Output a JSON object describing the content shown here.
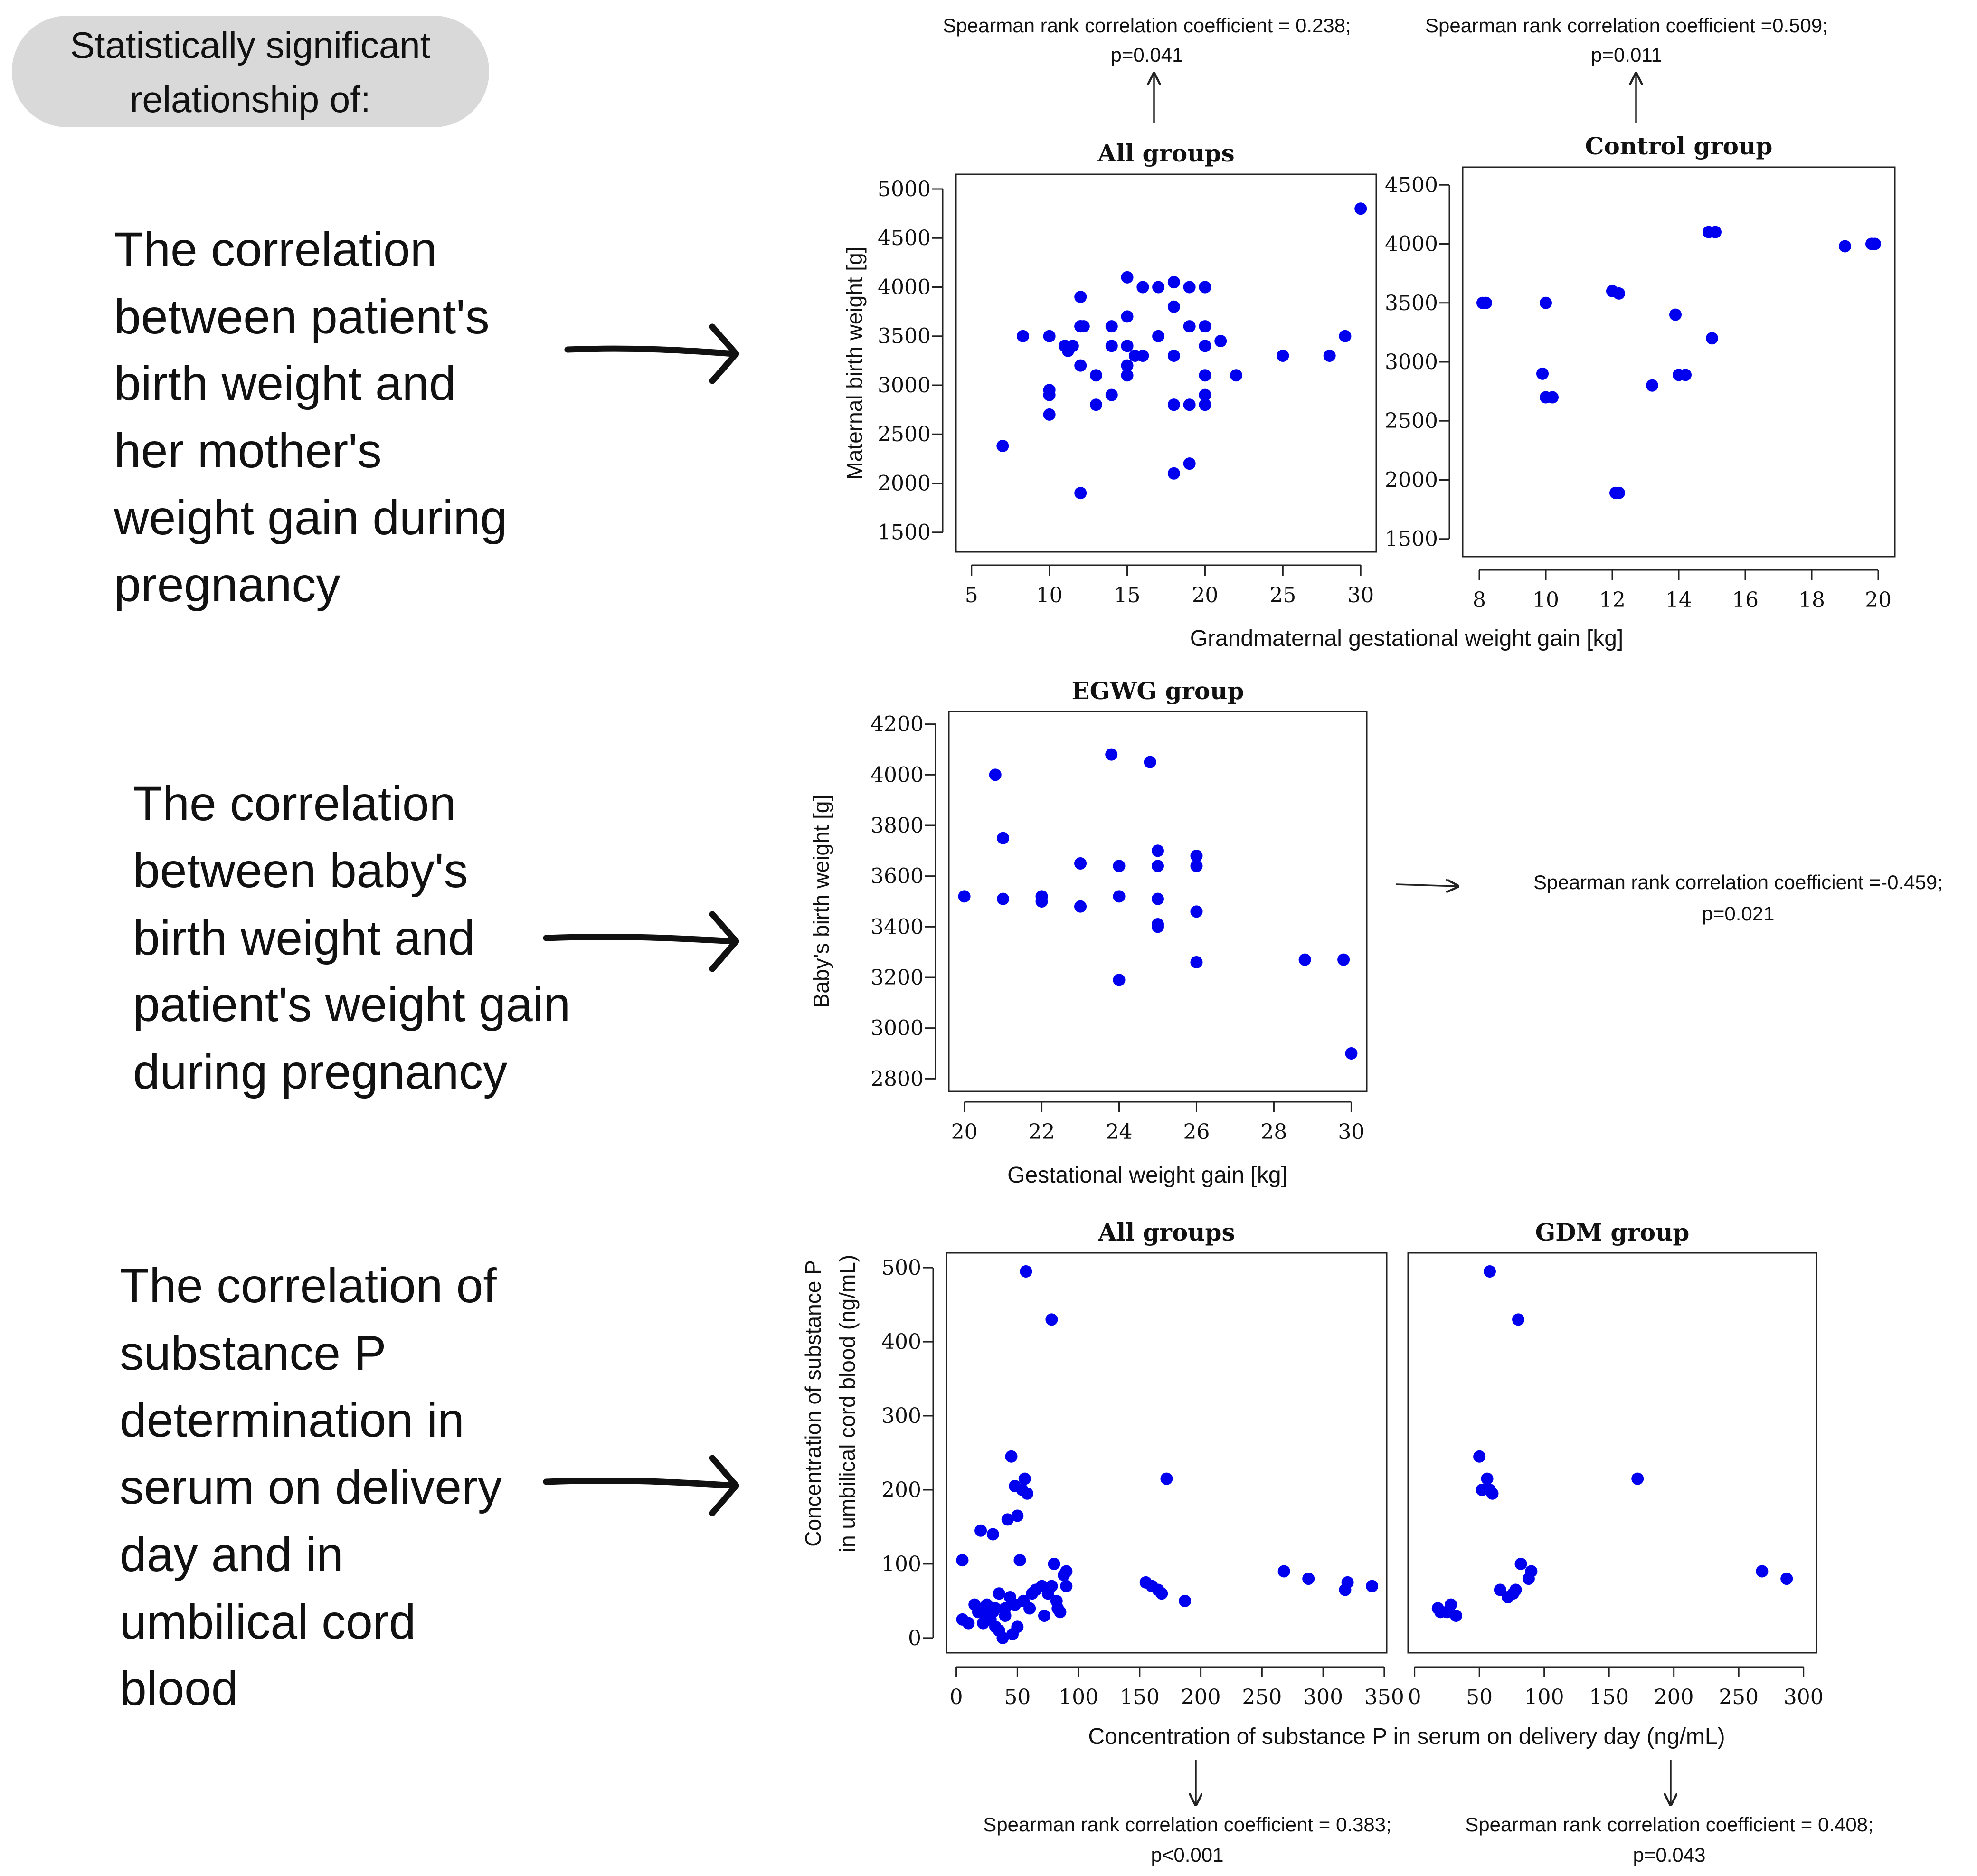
{
  "header": {
    "label": "Statistically significant relationship of:",
    "lines": [
      "Statistically significant",
      "relationship of:"
    ]
  },
  "colors": {
    "point": "#0000EE",
    "text": "#111111",
    "badge_bg": "#d9d9d9"
  },
  "rows": [
    {
      "id": "row1",
      "lines": [
        "The correlation",
        "between patient's",
        "birth weight and",
        "her mother's",
        "weight gain during",
        "pregnancy"
      ]
    },
    {
      "id": "row2",
      "lines": [
        "The correlation",
        "between baby's",
        "birth weight and",
        "patient's weight gain",
        "during pregnancy"
      ]
    },
    {
      "id": "row3",
      "lines": [
        "The correlation of",
        "substance P",
        "determination in",
        "serum on delivery",
        "day and in",
        "umbilical cord",
        "blood"
      ]
    }
  ],
  "annotations": {
    "a1": {
      "line1": "Spearman rank correlation coefficient = 0.238;",
      "line2": "p=0.041"
    },
    "a2": {
      "line1": "Spearman rank correlation coefficient =0.509;",
      "line2": "p=0.011"
    },
    "a3": {
      "line1": "Spearman rank correlation coefficient =-0.459;",
      "line2": "p=0.021"
    },
    "a4": {
      "line1": "Spearman rank correlation coefficient = 0.383;",
      "line2": "p<0.001"
    },
    "a5": {
      "line1": "Spearman rank correlation coefficient = 0.408;",
      "line2": "p=0.043"
    }
  },
  "shared_labels": {
    "row1_xlabel": "Grandmaternal gestational weight gain [kg]",
    "row3_xlabel": "Concentration of substance P in serum on delivery day (ng/mL)",
    "row3_ylabel_lines": [
      "Concentration of substance P",
      "in umbilical cord blood (ng/mL)"
    ]
  },
  "chart_data": [
    {
      "id": "c1",
      "type": "scatter",
      "title": "All groups",
      "ylabel": "Maternal birth weight [g]",
      "xlim": [
        4,
        31
      ],
      "ylim": [
        1300,
        5150
      ],
      "xticks": [
        5,
        10,
        15,
        20,
        25,
        30
      ],
      "yticks": [
        1500,
        2000,
        2500,
        3000,
        3500,
        4000,
        4500,
        5000
      ],
      "points": [
        [
          7,
          2380
        ],
        [
          8.3,
          3500
        ],
        [
          10,
          3500
        ],
        [
          10,
          2950
        ],
        [
          10,
          2900
        ],
        [
          10,
          2700
        ],
        [
          11,
          3400
        ],
        [
          11,
          3400
        ],
        [
          11.2,
          3350
        ],
        [
          11.5,
          3400
        ],
        [
          12,
          3600
        ],
        [
          12,
          3600
        ],
        [
          12.2,
          3600
        ],
        [
          12,
          3900
        ],
        [
          12,
          3200
        ],
        [
          12,
          1900
        ],
        [
          13,
          3100
        ],
        [
          13,
          2800
        ],
        [
          14,
          2900
        ],
        [
          14,
          3400
        ],
        [
          14,
          3600
        ],
        [
          15,
          4100
        ],
        [
          15,
          3400
        ],
        [
          15,
          3200
        ],
        [
          15,
          3400
        ],
        [
          15,
          3700
        ],
        [
          15,
          3100
        ],
        [
          15.5,
          3300
        ],
        [
          16,
          4000
        ],
        [
          16,
          3300
        ],
        [
          17,
          3500
        ],
        [
          17,
          4000
        ],
        [
          18,
          4050
        ],
        [
          18,
          4050
        ],
        [
          18,
          3800
        ],
        [
          18,
          2800
        ],
        [
          18,
          2800
        ],
        [
          18,
          3300
        ],
        [
          18,
          2100
        ],
        [
          19,
          4000
        ],
        [
          19,
          2800
        ],
        [
          19,
          3600
        ],
        [
          19,
          2200
        ],
        [
          20,
          4000
        ],
        [
          20,
          4000
        ],
        [
          20,
          3400
        ],
        [
          20,
          3600
        ],
        [
          20,
          3100
        ],
        [
          20,
          2900
        ],
        [
          20,
          2800
        ],
        [
          21,
          3450
        ],
        [
          22,
          3100
        ],
        [
          25,
          3300
        ],
        [
          28,
          3300
        ],
        [
          29,
          3500
        ],
        [
          30,
          4800
        ]
      ]
    },
    {
      "id": "c2",
      "type": "scatter",
      "title": "Control group",
      "xlim": [
        7.5,
        20.5
      ],
      "ylim": [
        1350,
        4650
      ],
      "xticks": [
        8,
        10,
        12,
        14,
        16,
        18,
        20
      ],
      "yticks": [
        1500,
        2000,
        2500,
        3000,
        3500,
        4000,
        4500
      ],
      "points": [
        [
          8.1,
          3500
        ],
        [
          8.2,
          3500
        ],
        [
          10,
          3500
        ],
        [
          9.9,
          2900
        ],
        [
          10,
          2700
        ],
        [
          10.2,
          2700
        ],
        [
          12,
          3600
        ],
        [
          12.2,
          3580
        ],
        [
          12.1,
          1890
        ],
        [
          12.2,
          1890
        ],
        [
          13.2,
          2800
        ],
        [
          13.9,
          3400
        ],
        [
          14,
          2890
        ],
        [
          14.2,
          2890
        ],
        [
          14.9,
          4100
        ],
        [
          15.1,
          4100
        ],
        [
          15,
          3200
        ],
        [
          19,
          3980
        ],
        [
          19.8,
          4000
        ],
        [
          19.9,
          4000
        ]
      ]
    },
    {
      "id": "c3",
      "type": "scatter",
      "title": "EGWG group",
      "xlabel": "Gestational weight gain [kg]",
      "ylabel": "Baby's birth weight [g]",
      "xlim": [
        19.6,
        30.4
      ],
      "ylim": [
        2750,
        4250
      ],
      "xticks": [
        20,
        22,
        24,
        26,
        28,
        30
      ],
      "yticks": [
        2800,
        3000,
        3200,
        3400,
        3600,
        3800,
        4000,
        4200
      ],
      "points": [
        [
          20,
          3520
        ],
        [
          20.8,
          4000
        ],
        [
          21,
          3750
        ],
        [
          21,
          3510
        ],
        [
          22,
          3520
        ],
        [
          22,
          3500
        ],
        [
          23,
          3650
        ],
        [
          23,
          3480
        ],
        [
          23.8,
          4080
        ],
        [
          24,
          3640
        ],
        [
          24,
          3520
        ],
        [
          24,
          3190
        ],
        [
          24.8,
          4050
        ],
        [
          25,
          3700
        ],
        [
          25,
          3640
        ],
        [
          25,
          3510
        ],
        [
          25,
          3400
        ],
        [
          25,
          3410
        ],
        [
          26,
          3680
        ],
        [
          26,
          3640
        ],
        [
          26,
          3460
        ],
        [
          26,
          3260
        ],
        [
          28.8,
          3270
        ],
        [
          29.8,
          3270
        ],
        [
          30,
          2900
        ]
      ]
    },
    {
      "id": "c4",
      "type": "scatter",
      "title": "All groups",
      "xlim": [
        -8,
        352
      ],
      "ylim": [
        -20,
        520
      ],
      "xticks": [
        0,
        50,
        100,
        150,
        200,
        250,
        300,
        350
      ],
      "yticks": [
        0,
        100,
        200,
        300,
        400,
        500
      ],
      "points": [
        [
          5,
          105
        ],
        [
          5,
          25
        ],
        [
          10,
          20
        ],
        [
          15,
          45
        ],
        [
          18,
          35
        ],
        [
          20,
          145
        ],
        [
          22,
          20
        ],
        [
          25,
          30
        ],
        [
          25,
          45
        ],
        [
          28,
          40
        ],
        [
          28,
          25
        ],
        [
          30,
          140
        ],
        [
          30,
          35
        ],
        [
          32,
          15
        ],
        [
          32,
          40
        ],
        [
          35,
          10
        ],
        [
          35,
          60
        ],
        [
          38,
          0
        ],
        [
          40,
          30
        ],
        [
          40,
          40
        ],
        [
          42,
          160
        ],
        [
          44,
          55
        ],
        [
          45,
          245
        ],
        [
          46,
          5
        ],
        [
          48,
          45
        ],
        [
          48,
          205
        ],
        [
          50,
          15
        ],
        [
          50,
          165
        ],
        [
          52,
          105
        ],
        [
          54,
          200
        ],
        [
          55,
          50
        ],
        [
          56,
          215
        ],
        [
          57,
          495
        ],
        [
          58,
          195
        ],
        [
          60,
          40
        ],
        [
          62,
          60
        ],
        [
          65,
          65
        ],
        [
          70,
          70
        ],
        [
          72,
          30
        ],
        [
          75,
          60
        ],
        [
          78,
          70
        ],
        [
          78,
          430
        ],
        [
          80,
          100
        ],
        [
          82,
          50
        ],
        [
          83,
          40
        ],
        [
          85,
          35
        ],
        [
          88,
          85
        ],
        [
          90,
          70
        ],
        [
          90,
          90
        ],
        [
          155,
          75
        ],
        [
          160,
          70
        ],
        [
          165,
          65
        ],
        [
          168,
          60
        ],
        [
          172,
          215
        ],
        [
          187,
          50
        ],
        [
          268,
          90
        ],
        [
          288,
          80
        ],
        [
          318,
          65
        ],
        [
          320,
          75
        ],
        [
          340,
          70
        ]
      ]
    },
    {
      "id": "c5",
      "type": "scatter",
      "title": "GDM group",
      "xlim": [
        -5,
        310
      ],
      "ylim": [
        -20,
        520
      ],
      "xticks": [
        0,
        50,
        100,
        150,
        200,
        250,
        300
      ],
      "yticks": [],
      "points": [
        [
          18,
          40
        ],
        [
          20,
          35
        ],
        [
          25,
          35
        ],
        [
          28,
          45
        ],
        [
          32,
          30
        ],
        [
          50,
          245
        ],
        [
          52,
          200
        ],
        [
          56,
          215
        ],
        [
          58,
          200
        ],
        [
          60,
          195
        ],
        [
          58,
          495
        ],
        [
          66,
          65
        ],
        [
          72,
          55
        ],
        [
          76,
          60
        ],
        [
          78,
          65
        ],
        [
          80,
          430
        ],
        [
          82,
          100
        ],
        [
          88,
          80
        ],
        [
          90,
          90
        ],
        [
          172,
          215
        ],
        [
          268,
          90
        ],
        [
          287,
          80
        ]
      ]
    }
  ]
}
